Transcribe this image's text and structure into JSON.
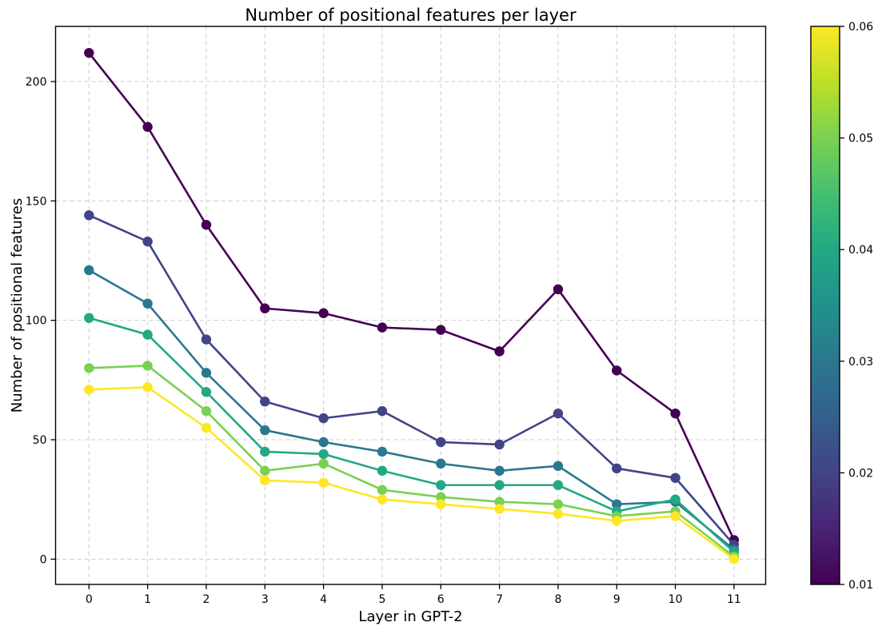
{
  "window": {
    "background": "#ffffff"
  },
  "chart_data": {
    "type": "line",
    "title": "Number of positional features per layer",
    "xlabel": "Layer in GPT-2",
    "ylabel": "Number of positional features",
    "x": [
      0,
      1,
      2,
      3,
      4,
      5,
      6,
      7,
      8,
      9,
      10,
      11
    ],
    "x_tick_labels": [
      "0",
      "1",
      "2",
      "3",
      "4",
      "5",
      "6",
      "7",
      "8",
      "9",
      "10",
      "11"
    ],
    "y_ticks": [
      0,
      50,
      100,
      150,
      200
    ],
    "y_tick_labels": [
      "0",
      "50",
      "100",
      "150",
      "200"
    ],
    "xlim": [
      -0.57,
      11.54
    ],
    "ylim": [
      -10.6,
      223.1
    ],
    "grid": true,
    "grid_style": "dashed",
    "legend_position": "colorbar-right",
    "marker": "circle",
    "series": [
      {
        "name": "0.01",
        "threshold": 0.01,
        "color": "#440154",
        "values": [
          212,
          181,
          140,
          105,
          103,
          97,
          96,
          87,
          113,
          79,
          61,
          8
        ]
      },
      {
        "name": "0.02",
        "threshold": 0.02,
        "color": "#414487",
        "values": [
          144,
          133,
          92,
          66,
          59,
          62,
          49,
          48,
          61,
          38,
          34,
          6
        ]
      },
      {
        "name": "0.03",
        "threshold": 0.03,
        "color": "#2a788e",
        "values": [
          121,
          107,
          78,
          54,
          49,
          45,
          40,
          37,
          39,
          23,
          24,
          4
        ]
      },
      {
        "name": "0.04",
        "threshold": 0.04,
        "color": "#22a884",
        "values": [
          101,
          94,
          70,
          45,
          44,
          37,
          31,
          31,
          31,
          20,
          25,
          3
        ]
      },
      {
        "name": "0.05",
        "threshold": 0.05,
        "color": "#7ad151",
        "values": [
          80,
          81,
          62,
          37,
          40,
          29,
          26,
          24,
          23,
          18,
          20,
          1
        ]
      },
      {
        "name": "0.06",
        "threshold": 0.06,
        "color": "#fde725",
        "values": [
          71,
          72,
          55,
          33,
          32,
          25,
          23,
          21,
          19,
          16,
          18,
          0
        ]
      }
    ],
    "colorbar": {
      "min": 0.01,
      "max": 0.06,
      "ticks": [
        0.01,
        0.02,
        0.03,
        0.04,
        0.05,
        0.06
      ],
      "tick_labels": [
        "0.01",
        "0.02",
        "0.03",
        "0.04",
        "0.05",
        "0.06"
      ],
      "gradient_stops_bottom_to_top": [
        "#440154",
        "#482475",
        "#414487",
        "#355f8d",
        "#2a788e",
        "#21918c",
        "#22a884",
        "#44bf70",
        "#7ad151",
        "#bddf26",
        "#fde725"
      ]
    },
    "colors": {
      "grid": "#cccccc",
      "axis": "#000000",
      "text": "#000000"
    }
  }
}
